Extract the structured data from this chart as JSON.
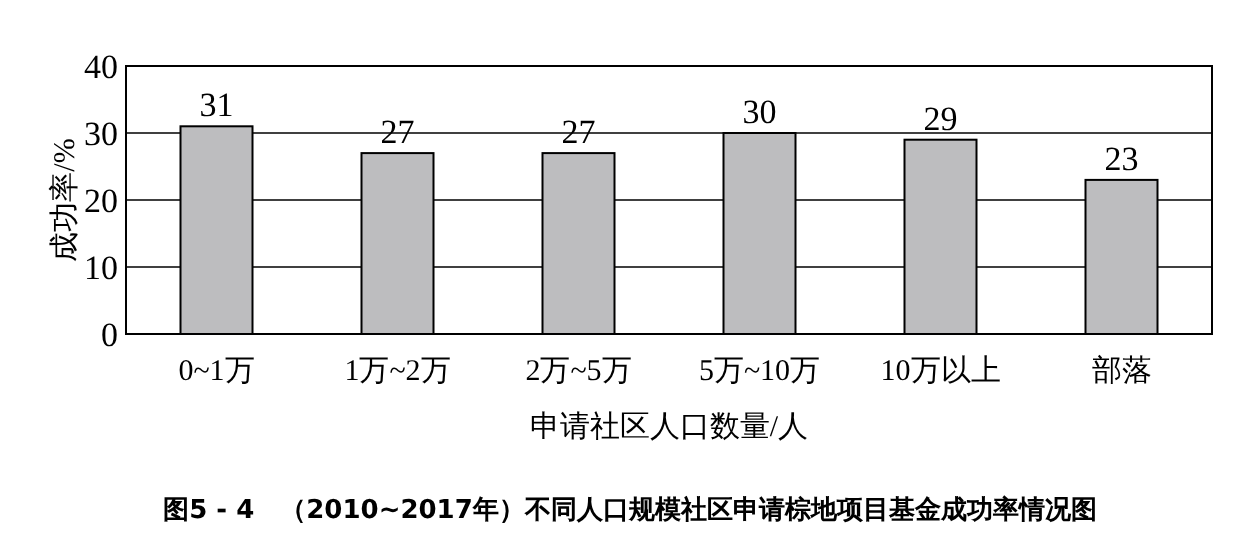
{
  "chart_data": {
    "type": "bar",
    "title": "图5 - 4　（2010~2017年）不同人口规模社区申请棕地项目基金成功率情况图",
    "xlabel": "申请社区人口数量/人",
    "ylabel": "成功率/%",
    "categories": [
      "0~1万",
      "1万~2万",
      "2万~5万",
      "5万~10万",
      "10万以上",
      "部落"
    ],
    "values": [
      31,
      27,
      27,
      30,
      29,
      23
    ],
    "color": "#bdbdbf",
    "ylim": [
      0,
      40
    ],
    "yticks": [
      0,
      10,
      20,
      30,
      40
    ],
    "grid": "y",
    "data_labels": true
  }
}
